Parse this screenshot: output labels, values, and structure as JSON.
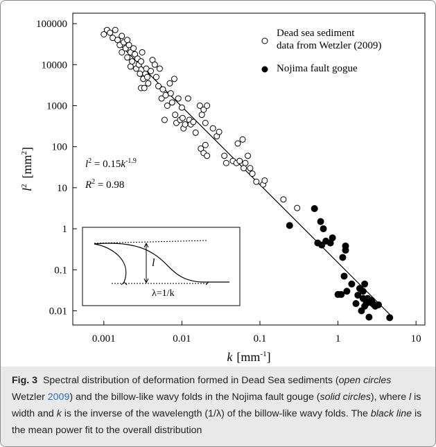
{
  "chart_data": {
    "type": "scatter",
    "x_label": {
      "name": "k",
      "unit": "[mm",
      "exp": "-1",
      "close": "]"
    },
    "y_label": {
      "name": "l",
      "sup": "2",
      "unit": "[mm",
      "exp": "2",
      "close": "]"
    },
    "xlim": [
      0.0004,
      13
    ],
    "ylim": [
      0.0045,
      180000
    ],
    "log_x": true,
    "log_y": true,
    "xticks": [
      0.001,
      0.01,
      0.1,
      1,
      10
    ],
    "yticks": [
      100000,
      10000,
      1000,
      100,
      10,
      1,
      0.1,
      0.01
    ],
    "series": [
      {
        "name": "Dead sea sediment\ndata from Wetzler (2009)",
        "marker": "open",
        "color": "#000000",
        "x": [
          0.001,
          0.0011,
          0.0012,
          0.0013,
          0.0014,
          0.0015,
          0.0016,
          0.0017,
          0.0017,
          0.0018,
          0.0019,
          0.002,
          0.002,
          0.0021,
          0.0022,
          0.0022,
          0.0023,
          0.0024,
          0.0025,
          0.0026,
          0.0027,
          0.0028,
          0.0029,
          0.003,
          0.003,
          0.0031,
          0.0032,
          0.0033,
          0.0034,
          0.0035,
          0.0036,
          0.0037,
          0.004,
          0.0042,
          0.0045,
          0.0047,
          0.005,
          0.0052,
          0.0055,
          0.0057,
          0.006,
          0.0062,
          0.0065,
          0.007,
          0.0072,
          0.0075,
          0.008,
          0.0082,
          0.0085,
          0.009,
          0.0095,
          0.01,
          0.0102,
          0.0105,
          0.011,
          0.012,
          0.0125,
          0.013,
          0.014,
          0.015,
          0.017,
          0.018,
          0.019,
          0.02,
          0.021,
          0.0175,
          0.019,
          0.02,
          0.021,
          0.025,
          0.028,
          0.03,
          0.035,
          0.037,
          0.045,
          0.05,
          0.052,
          0.055,
          0.06,
          0.062,
          0.065,
          0.07,
          0.075,
          0.08,
          0.09,
          0.11,
          0.115,
          0.2,
          0.3
        ],
        "values": [
          55000,
          70000,
          60000,
          45000,
          70000,
          40000,
          30000,
          50000,
          20000,
          35000,
          25000,
          15000,
          40000,
          30000,
          20000,
          9000,
          12000,
          25000,
          18000,
          8000,
          14000,
          10000,
          6000,
          12000,
          2700,
          20000,
          4500,
          2700,
          6000,
          8000,
          5000,
          3500,
          7000,
          13000,
          10000,
          5000,
          3000,
          8000,
          1500,
          2500,
          450,
          1800,
          1000,
          3500,
          2000,
          1200,
          4500,
          600,
          380,
          1500,
          450,
          900,
          500,
          280,
          350,
          1500,
          450,
          350,
          400,
          220,
          1000,
          600,
          800,
          380,
          1000,
          90,
          70,
          110,
          60,
          280,
          180,
          230,
          60,
          40,
          45,
          40,
          120,
          45,
          150,
          30,
          40,
          60,
          30,
          22,
          14,
          12,
          15,
          5.2,
          3.2
        ]
      },
      {
        "name": "Nojima fault gogue",
        "marker": "solid",
        "color": "#000000",
        "x": [
          0.24,
          0.5,
          0.55,
          0.6,
          0.62,
          0.65,
          0.7,
          0.8,
          0.85,
          1,
          1.1,
          1.2,
          1.15,
          1.25,
          1.25,
          1.3,
          1.5,
          1.7,
          1.8,
          1.9,
          2,
          2.1,
          2.2,
          2.3,
          2.1,
          2.2,
          2.5,
          2.6,
          2.7,
          2.9,
          3,
          2.8,
          3.3,
          4.6,
          2.4
        ],
        "values": [
          1.2,
          3.1,
          0.45,
          1.5,
          0.4,
          1,
          0.5,
          0.45,
          0.6,
          0.025,
          0.025,
          0.07,
          0.2,
          0.3,
          0.38,
          0.03,
          0.045,
          0.015,
          0.024,
          0.035,
          0.01,
          0.03,
          0.045,
          0.015,
          0.02,
          0.013,
          0.007,
          0.016,
          0.018,
          0.014,
          0.013,
          0.015,
          0.014,
          0.0068,
          0.02
        ]
      }
    ],
    "fit": {
      "x": [
        0.001,
        4.6
      ],
      "values": [
        75000,
        0.0082
      ]
    },
    "equation": {
      "l": "l",
      "sup": "2",
      "eq": " = 0.15",
      "k": "k",
      "exp": "-1.9"
    },
    "r2": {
      "r": "R",
      "sup": "2",
      "eq": " = 0.98"
    },
    "inset": {
      "l": "l",
      "lambda": "λ=1/k"
    }
  },
  "caption": {
    "label": "Fig. 3",
    "parts": [
      "Spectral distribution of deformation formed in Dead Sea sediments (",
      "open circles",
      " Wetzler ",
      "2009",
      ") and the billow-like wavy folds in the Nojima fault gouge (",
      "solid circles",
      "), where ",
      "l",
      " is width and ",
      "k",
      " is the inverse of the wavelength (1/",
      "λ",
      ") of the billow-like wavy folds. The ",
      "black line",
      " is the mean power fit to the overall distribution"
    ]
  }
}
